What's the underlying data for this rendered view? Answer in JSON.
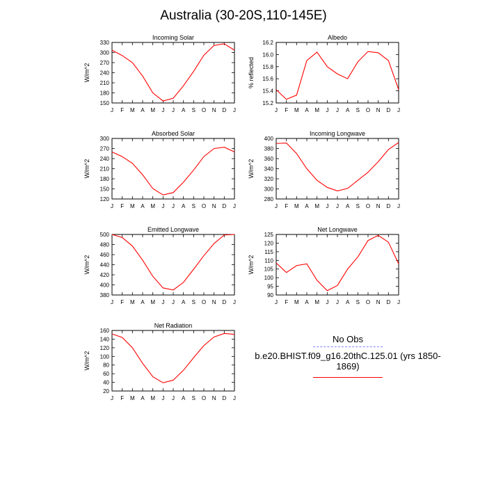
{
  "title": "Australia (30-20S,110-145E)",
  "months": [
    "J",
    "F",
    "M",
    "A",
    "M",
    "J",
    "J",
    "A",
    "S",
    "O",
    "N",
    "D",
    "J"
  ],
  "colors": {
    "model": "#ff0000",
    "obs": "#8080ff",
    "axis": "#000000"
  },
  "chart_data": [
    {
      "type": "line",
      "title": "Incoming Solar",
      "ylabel": "W/m^2",
      "ylim": [
        150,
        330
      ],
      "yticks": [
        150,
        180,
        210,
        240,
        270,
        300,
        330
      ],
      "series": [
        {
          "name": "b.e20.BHIST.f09_g16.20thC.125.01 (yrs 1850-1869)",
          "values": [
            307,
            291,
            270,
            230,
            180,
            156,
            164,
            201,
            244,
            292,
            321,
            326,
            307
          ]
        }
      ]
    },
    {
      "type": "line",
      "title": "Albedo",
      "ylabel": "% reflected",
      "ylim": [
        15.2,
        16.2
      ],
      "yticks": [
        15.2,
        15.4,
        15.6,
        15.8,
        16.0,
        16.2
      ],
      "series": [
        {
          "name": "b.e20.BHIST.f09_g16.20thC.125.01 (yrs 1850-1869)",
          "values": [
            15.42,
            15.26,
            15.33,
            15.9,
            16.04,
            15.8,
            15.68,
            15.6,
            15.88,
            16.05,
            16.03,
            15.9,
            15.42
          ]
        }
      ]
    },
    {
      "type": "line",
      "title": "Absorbed Solar",
      "ylabel": "W/m^2",
      "ylim": [
        120,
        300
      ],
      "yticks": [
        120,
        150,
        180,
        210,
        240,
        270,
        300
      ],
      "series": [
        {
          "name": "b.e20.BHIST.f09_g16.20thC.125.01 (yrs 1850-1869)",
          "values": [
            260,
            246,
            226,
            192,
            151,
            132,
            139,
            170,
            206,
            246,
            270,
            274,
            260
          ]
        }
      ]
    },
    {
      "type": "line",
      "title": "Incoming Longwave",
      "ylabel": "W/m^2",
      "ylim": [
        280,
        400
      ],
      "yticks": [
        280,
        300,
        320,
        340,
        360,
        380,
        400
      ],
      "series": [
        {
          "name": "b.e20.BHIST.f09_g16.20thC.125.01 (yrs 1850-1869)",
          "values": [
            390,
            391,
            370,
            340,
            317,
            303,
            296,
            301,
            317,
            333,
            354,
            378,
            392
          ]
        }
      ]
    },
    {
      "type": "line",
      "title": "Emitted Longwave",
      "ylabel": "W/m^2",
      "ylim": [
        380,
        500
      ],
      "yticks": [
        380,
        400,
        420,
        440,
        460,
        480,
        500
      ],
      "series": [
        {
          "name": "b.e20.BHIST.f09_g16.20thC.125.01 (yrs 1850-1869)",
          "values": [
            500,
            494,
            477,
            449,
            417,
            394,
            390,
            405,
            431,
            458,
            482,
            499,
            500
          ]
        }
      ]
    },
    {
      "type": "line",
      "title": "Net Longwave",
      "ylabel": "W/m^2",
      "ylim": [
        90,
        125
      ],
      "yticks": [
        90,
        95,
        100,
        105,
        110,
        115,
        120,
        125
      ],
      "series": [
        {
          "name": "b.e20.BHIST.f09_g16.20thC.125.01 (yrs 1850-1869)",
          "values": [
            108.5,
            103,
            107,
            108,
            98.5,
            92.5,
            95.5,
            105,
            112,
            121.5,
            124.5,
            120.5,
            108
          ]
        }
      ]
    },
    {
      "type": "line",
      "title": "Net Radiation",
      "ylabel": "W/m^2",
      "ylim": [
        20,
        160
      ],
      "yticks": [
        20,
        40,
        60,
        80,
        100,
        120,
        140,
        160
      ],
      "series": [
        {
          "name": "b.e20.BHIST.f09_g16.20thC.125.01 (yrs 1850-1869)",
          "values": [
            152,
            144,
            120,
            84,
            53,
            39,
            45,
            68,
            97,
            125,
            145,
            153,
            151
          ]
        }
      ]
    }
  ],
  "legend": {
    "obs_label": "No Obs",
    "model_label": "b.e20.BHIST.f09_g16.20thC.125.01 (yrs 1850-1869)"
  }
}
